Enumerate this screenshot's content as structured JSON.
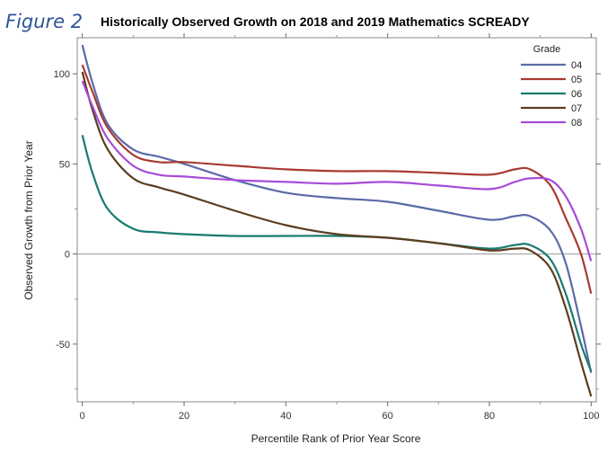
{
  "figure_label": "Figure 2",
  "chart_data": {
    "type": "line",
    "title": "Historically Observed Growth on 2018 and 2019 Mathematics SCREADY",
    "xlabel": "Percentile Rank of Prior Year Score",
    "ylabel": "Observed Growth from Prior Year",
    "xlim": [
      -1,
      101
    ],
    "ylim": [
      -82,
      120
    ],
    "xticks": [
      0,
      20,
      40,
      60,
      80,
      100
    ],
    "yticks": [
      -50,
      0,
      50,
      100
    ],
    "reference_line_y": 0,
    "legend": {
      "title": "Grade",
      "placement": "top-right"
    },
    "x": [
      0,
      2,
      5,
      10,
      15,
      20,
      30,
      40,
      50,
      60,
      70,
      80,
      85,
      88,
      92,
      95,
      98,
      100
    ],
    "series": [
      {
        "name": "04",
        "color": "#5b6aa8",
        "values": [
          116,
          95,
          72,
          58,
          54,
          50,
          41,
          34,
          31,
          29,
          24,
          19,
          21,
          21,
          13,
          -5,
          -40,
          -66
        ]
      },
      {
        "name": "05",
        "color": "#a83a32",
        "values": [
          105,
          90,
          70,
          55,
          51,
          51,
          49,
          47,
          46,
          46,
          45,
          44,
          47,
          47,
          38,
          20,
          0,
          -22
        ]
      },
      {
        "name": "06",
        "color": "#1a7a70",
        "values": [
          66,
          45,
          25,
          14,
          12,
          11,
          10,
          10,
          10,
          9,
          6,
          3,
          5,
          5,
          -3,
          -22,
          -50,
          -65
        ]
      },
      {
        "name": "07",
        "color": "#5c3d1e",
        "values": [
          101,
          80,
          58,
          42,
          37,
          33,
          24,
          16,
          11,
          9,
          6,
          2,
          3,
          2,
          -8,
          -30,
          -60,
          -79
        ]
      },
      {
        "name": "08",
        "color": "#a74bd8",
        "values": [
          96,
          82,
          64,
          49,
          44,
          43,
          41,
          40,
          39,
          40,
          38,
          36,
          40,
          42,
          41,
          32,
          14,
          -4
        ]
      }
    ]
  }
}
